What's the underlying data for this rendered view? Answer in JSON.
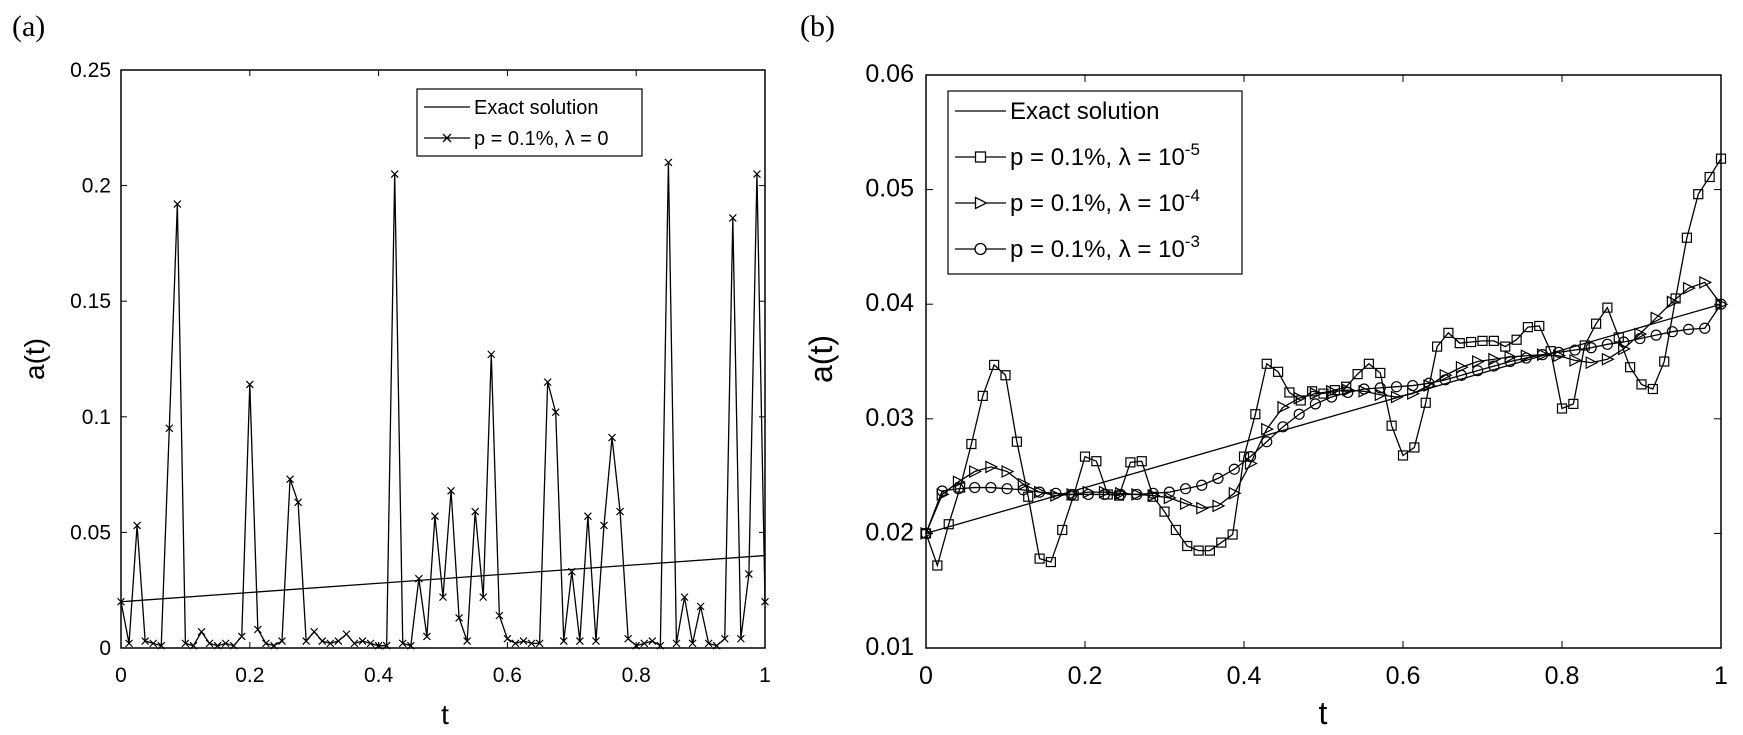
{
  "chart_data": [
    {
      "panel": "(a)",
      "type": "line",
      "xlabel": "t",
      "ylabel": "a(t)",
      "xlim": [
        0,
        1
      ],
      "ylim": [
        0,
        0.25
      ],
      "xticks": [
        "0",
        "0.2",
        "0.4",
        "0.6",
        "0.8",
        "1"
      ],
      "yticks": [
        "0",
        "0.05",
        "0.1",
        "0.15",
        "0.2",
        "0.25"
      ],
      "legend": [
        "Exact solution",
        "p = 0.1%, λ = 0"
      ],
      "series": [
        {
          "name": "Exact solution",
          "marker": "none",
          "x": [
            0,
            1
          ],
          "y": [
            0.02,
            0.04
          ]
        },
        {
          "name": "p = 0.1%, λ = 0",
          "marker": "x",
          "x": [
            0,
            0.0125,
            0.025,
            0.0375,
            0.05,
            0.0625,
            0.075,
            0.0875,
            0.1,
            0.1125,
            0.125,
            0.1375,
            0.15,
            0.1625,
            0.175,
            0.1875,
            0.2,
            0.2125,
            0.225,
            0.2375,
            0.25,
            0.2625,
            0.275,
            0.2875,
            0.3,
            0.3125,
            0.325,
            0.3375,
            0.35,
            0.3625,
            0.375,
            0.3875,
            0.4,
            0.4125,
            0.425,
            0.4375,
            0.45,
            0.4625,
            0.475,
            0.4875,
            0.5,
            0.5125,
            0.525,
            0.5375,
            0.55,
            0.5625,
            0.575,
            0.5875,
            0.6,
            0.6125,
            0.625,
            0.6375,
            0.65,
            0.6625,
            0.675,
            0.6875,
            0.7,
            0.7125,
            0.725,
            0.7375,
            0.75,
            0.7625,
            0.775,
            0.7875,
            0.8,
            0.8125,
            0.825,
            0.8375,
            0.85,
            0.8625,
            0.875,
            0.8875,
            0.9,
            0.9125,
            0.925,
            0.9375,
            0.95,
            0.9625,
            0.975,
            0.9875,
            1
          ],
          "y": [
            0.02,
            0.002,
            0.053,
            0.003,
            0.002,
            0.001,
            0.095,
            0.192,
            0.002,
            0.001,
            0.007,
            0.002,
            0.001,
            0.002,
            0.001,
            0.005,
            0.114,
            0.008,
            0.002,
            0.001,
            0.003,
            0.073,
            0.063,
            0.003,
            0.007,
            0.003,
            0.002,
            0.003,
            0.006,
            0.002,
            0.003,
            0.002,
            0.001,
            0.001,
            0.205,
            0.002,
            0.001,
            0.03,
            0.005,
            0.057,
            0.022,
            0.068,
            0.013,
            0.003,
            0.059,
            0.022,
            0.127,
            0.014,
            0.004,
            0.002,
            0.003,
            0.002,
            0.002,
            0.115,
            0.102,
            0.003,
            0.033,
            0.003,
            0.057,
            0.003,
            0.053,
            0.091,
            0.059,
            0.004,
            0.001,
            0.002,
            0.003,
            0.001,
            0.21,
            0.002,
            0.022,
            0.002,
            0.018,
            0.002,
            0.001,
            0.004,
            0.186,
            0.004,
            0.032,
            0.205,
            0.02
          ]
        }
      ]
    },
    {
      "panel": "(b)",
      "type": "line",
      "xlabel": "t",
      "ylabel": "a(t)",
      "xlim": [
        0,
        1
      ],
      "ylim": [
        0.01,
        0.06
      ],
      "xticks": [
        "0",
        "0.2",
        "0.4",
        "0.6",
        "0.8",
        "1"
      ],
      "yticks": [
        "0.01",
        "0.02",
        "0.03",
        "0.04",
        "0.05",
        "0.06"
      ],
      "legend": [
        {
          "label": "Exact solution",
          "exponent": ""
        },
        {
          "label": "p = 0.1%, λ = 10",
          "exponent": "-5"
        },
        {
          "label": "p = 0.1%, λ = 10",
          "exponent": "-4"
        },
        {
          "label": "p = 0.1%, λ = 10",
          "exponent": "-3"
        }
      ],
      "series": [
        {
          "name": "Exact solution",
          "marker": "none",
          "x": [
            0,
            1
          ],
          "y": [
            0.02,
            0.04
          ]
        },
        {
          "name": "p = 0.1%, λ = 10^-5",
          "marker": "square",
          "x": [
            0,
            0.0143,
            0.0286,
            0.0429,
            0.0571,
            0.0714,
            0.0857,
            0.1,
            0.1143,
            0.1286,
            0.1429,
            0.1571,
            0.1714,
            0.1857,
            0.2,
            0.2143,
            0.2286,
            0.2429,
            0.2571,
            0.2714,
            0.2857,
            0.3,
            0.3143,
            0.3286,
            0.3429,
            0.3571,
            0.3714,
            0.3857,
            0.4,
            0.4143,
            0.4286,
            0.4429,
            0.4571,
            0.4714,
            0.4857,
            0.5,
            0.5143,
            0.5286,
            0.5429,
            0.5571,
            0.5714,
            0.5857,
            0.6,
            0.6143,
            0.6286,
            0.6429,
            0.6571,
            0.6714,
            0.6857,
            0.7,
            0.7143,
            0.7286,
            0.7429,
            0.7571,
            0.7714,
            0.7857,
            0.8,
            0.8143,
            0.8286,
            0.8429,
            0.8571,
            0.8714,
            0.8857,
            0.9,
            0.9143,
            0.9286,
            0.9429,
            0.9571,
            0.9714,
            0.9857,
            1
          ],
          "y": [
            0.02,
            0.0172,
            0.0208,
            0.024,
            0.0278,
            0.032,
            0.0347,
            0.0338,
            0.028,
            0.0232,
            0.0178,
            0.0175,
            0.0203,
            0.0233,
            0.0267,
            0.0263,
            0.0234,
            0.0233,
            0.0262,
            0.0263,
            0.0232,
            0.0219,
            0.0203,
            0.0189,
            0.0185,
            0.0185,
            0.0192,
            0.0199,
            0.0267,
            0.0304,
            0.0348,
            0.0341,
            0.0323,
            0.0316,
            0.0324,
            0.0322,
            0.0325,
            0.0328,
            0.0339,
            0.0348,
            0.034,
            0.0294,
            0.0268,
            0.0275,
            0.0314,
            0.0363,
            0.0375,
            0.0366,
            0.0367,
            0.0368,
            0.0368,
            0.0363,
            0.0369,
            0.038,
            0.0381,
            0.0359,
            0.0309,
            0.0313,
            0.0364,
            0.0383,
            0.0397,
            0.0371,
            0.0345,
            0.033,
            0.0326,
            0.035,
            0.0405,
            0.0458,
            0.0496,
            0.0511,
            0.0527
          ]
        },
        {
          "name": "p = 0.1%, λ = 10^-4",
          "marker": "triangle-right",
          "x": [
            0,
            0.0204,
            0.0408,
            0.0612,
            0.0816,
            0.102,
            0.1224,
            0.1429,
            0.1633,
            0.1837,
            0.2041,
            0.2245,
            0.2449,
            0.2653,
            0.2857,
            0.3061,
            0.3265,
            0.3469,
            0.3673,
            0.3878,
            0.4082,
            0.4286,
            0.449,
            0.4694,
            0.4898,
            0.5102,
            0.5306,
            0.551,
            0.5714,
            0.5918,
            0.6122,
            0.6327,
            0.6531,
            0.6735,
            0.6939,
            0.7143,
            0.7347,
            0.7551,
            0.7755,
            0.7959,
            0.8163,
            0.8367,
            0.8571,
            0.8776,
            0.898,
            0.9184,
            0.9388,
            0.9592,
            0.9796,
            1
          ],
          "y": [
            0.02,
            0.0234,
            0.0245,
            0.0254,
            0.0258,
            0.0254,
            0.0243,
            0.0236,
            0.0233,
            0.0234,
            0.0236,
            0.0236,
            0.0235,
            0.0234,
            0.0233,
            0.0231,
            0.0226,
            0.0222,
            0.0224,
            0.0235,
            0.0261,
            0.0291,
            0.031,
            0.0318,
            0.0322,
            0.0324,
            0.0325,
            0.0324,
            0.0321,
            0.0319,
            0.0322,
            0.0329,
            0.0338,
            0.0345,
            0.035,
            0.0352,
            0.0354,
            0.0355,
            0.0356,
            0.0355,
            0.0351,
            0.0349,
            0.0352,
            0.0361,
            0.0374,
            0.0388,
            0.0402,
            0.0414,
            0.0419,
            0.04
          ]
        },
        {
          "name": "p = 0.1%, λ = 10^-3",
          "marker": "circle",
          "x": [
            0,
            0.0204,
            0.0408,
            0.0612,
            0.0816,
            0.102,
            0.1224,
            0.1429,
            0.1633,
            0.1837,
            0.2041,
            0.2245,
            0.2449,
            0.2653,
            0.2857,
            0.3061,
            0.3265,
            0.3469,
            0.3673,
            0.3878,
            0.4082,
            0.4286,
            0.449,
            0.4694,
            0.4898,
            0.5102,
            0.5306,
            0.551,
            0.5714,
            0.5918,
            0.6122,
            0.6327,
            0.6531,
            0.6735,
            0.6939,
            0.7143,
            0.7347,
            0.7551,
            0.7755,
            0.7959,
            0.8163,
            0.8367,
            0.8571,
            0.8776,
            0.898,
            0.9184,
            0.9388,
            0.9592,
            0.9796,
            1
          ],
          "y": [
            0.02,
            0.0237,
            0.0239,
            0.024,
            0.024,
            0.0239,
            0.0238,
            0.0236,
            0.0235,
            0.0234,
            0.0234,
            0.0234,
            0.0234,
            0.0234,
            0.0235,
            0.0236,
            0.0239,
            0.0242,
            0.0248,
            0.0256,
            0.0267,
            0.028,
            0.0293,
            0.0304,
            0.0313,
            0.0319,
            0.0323,
            0.0326,
            0.0327,
            0.0328,
            0.0329,
            0.0331,
            0.0334,
            0.0338,
            0.0342,
            0.0346,
            0.035,
            0.0353,
            0.0356,
            0.0358,
            0.036,
            0.0362,
            0.0365,
            0.0367,
            0.037,
            0.0373,
            0.0376,
            0.0378,
            0.0379,
            0.04
          ]
        }
      ]
    }
  ]
}
